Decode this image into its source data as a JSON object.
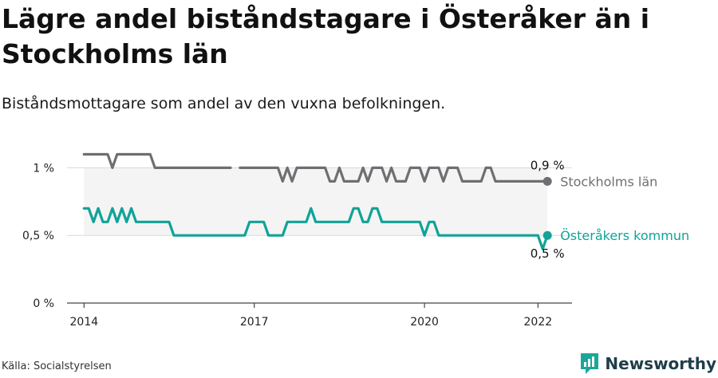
{
  "header": {
    "title": "Lägre andel biståndstagare i Österåker än i Stockholms län",
    "subtitle": "Biståndsmottagare som andel av den vuxna befolkningen."
  },
  "footer": {
    "source": "Källa: Socialstyrelsen",
    "brand": "Newsworthy"
  },
  "colors": {
    "stockholm": "#6e6e73",
    "osteraker": "#10a398",
    "band": "#f4f4f4",
    "grid": "#d9d9d9",
    "brand": "#1f3d4a",
    "brand_icon": "#1aa69a"
  },
  "chart_data": {
    "type": "line",
    "title": "Lägre andel biståndstagare i Österåker än i Stockholms län",
    "subtitle": "Biståndsmottagare som andel av den vuxna befolkningen.",
    "y_tick_labels": [
      "0 %",
      "0,5 %",
      "1 %"
    ],
    "y_ticks": [
      0,
      0.5,
      1
    ],
    "ylim": [
      0,
      1.15
    ],
    "x_tick_labels": [
      "2014",
      "2017",
      "2020",
      "2022"
    ],
    "x_ticks": [
      2014,
      2017,
      2020,
      2022
    ],
    "xlim": [
      2013.7,
      2022.6
    ],
    "grid": true,
    "x": [
      2014.0,
      2014.083,
      2014.167,
      2014.25,
      2014.333,
      2014.417,
      2014.5,
      2014.583,
      2014.667,
      2014.75,
      2014.833,
      2014.917,
      2015.0,
      2015.083,
      2015.167,
      2015.25,
      2015.333,
      2015.417,
      2015.5,
      2015.583,
      2015.667,
      2015.75,
      2015.833,
      2015.917,
      2016.0,
      2016.083,
      2016.167,
      2016.25,
      2016.333,
      2016.417,
      2016.5,
      2016.583,
      2016.667,
      2016.75,
      2016.833,
      2016.917,
      2017.0,
      2017.083,
      2017.167,
      2017.25,
      2017.333,
      2017.417,
      2017.5,
      2017.583,
      2017.667,
      2017.75,
      2017.833,
      2017.917,
      2018.0,
      2018.083,
      2018.167,
      2018.25,
      2018.333,
      2018.417,
      2018.5,
      2018.583,
      2018.667,
      2018.75,
      2018.833,
      2018.917,
      2019.0,
      2019.083,
      2019.167,
      2019.25,
      2019.333,
      2019.417,
      2019.5,
      2019.583,
      2019.667,
      2019.75,
      2019.833,
      2019.917,
      2020.0,
      2020.083,
      2020.167,
      2020.25,
      2020.333,
      2020.417,
      2020.5,
      2020.583,
      2020.667,
      2020.75,
      2020.833,
      2020.917,
      2021.0,
      2021.083,
      2021.167,
      2021.25,
      2021.333,
      2021.417,
      2021.5,
      2021.583,
      2021.667,
      2021.75,
      2021.833,
      2021.917,
      2022.0,
      2022.083,
      2022.167
    ],
    "series": [
      {
        "name": "Stockholms län",
        "end_label": "0,9 %",
        "values": [
          1.1,
          1.1,
          1.1,
          1.1,
          1.1,
          1.1,
          1.0,
          1.1,
          1.1,
          1.1,
          1.1,
          1.1,
          1.1,
          1.1,
          1.1,
          1.0,
          1.0,
          1.0,
          1.0,
          1.0,
          1.0,
          1.0,
          1.0,
          1.0,
          1.0,
          1.0,
          1.0,
          1.0,
          1.0,
          1.0,
          1.0,
          1.0,
          null,
          1.0,
          1.0,
          1.0,
          1.0,
          1.0,
          1.0,
          1.0,
          1.0,
          1.0,
          0.9,
          1.0,
          0.9,
          1.0,
          1.0,
          1.0,
          1.0,
          1.0,
          1.0,
          1.0,
          0.9,
          0.9,
          1.0,
          0.9,
          0.9,
          0.9,
          0.9,
          1.0,
          0.9,
          1.0,
          1.0,
          1.0,
          0.9,
          1.0,
          0.9,
          0.9,
          0.9,
          1.0,
          1.0,
          1.0,
          0.9,
          1.0,
          1.0,
          1.0,
          0.9,
          1.0,
          1.0,
          1.0,
          0.9,
          0.9,
          0.9,
          0.9,
          0.9,
          1.0,
          1.0,
          0.9,
          0.9,
          0.9,
          0.9,
          0.9,
          0.9,
          0.9,
          0.9,
          0.9,
          0.9,
          0.9,
          0.9
        ]
      },
      {
        "name": "Österåkers kommun",
        "end_label": "0,5 %",
        "values": [
          0.7,
          0.7,
          0.6,
          0.7,
          0.6,
          0.6,
          0.7,
          0.6,
          0.7,
          0.6,
          0.7,
          0.6,
          0.6,
          0.6,
          0.6,
          0.6,
          0.6,
          0.6,
          0.6,
          0.5,
          0.5,
          0.5,
          0.5,
          0.5,
          0.5,
          0.5,
          0.5,
          0.5,
          0.5,
          0.5,
          0.5,
          0.5,
          0.5,
          0.5,
          0.5,
          0.6,
          0.6,
          0.6,
          0.6,
          0.5,
          0.5,
          0.5,
          0.5,
          0.6,
          0.6,
          0.6,
          0.6,
          0.6,
          0.7,
          0.6,
          0.6,
          0.6,
          0.6,
          0.6,
          0.6,
          0.6,
          0.6,
          0.7,
          0.7,
          0.6,
          0.6,
          0.7,
          0.7,
          0.6,
          0.6,
          0.6,
          0.6,
          0.6,
          0.6,
          0.6,
          0.6,
          0.6,
          0.5,
          0.6,
          0.6,
          0.5,
          0.5,
          0.5,
          0.5,
          0.5,
          0.5,
          0.5,
          0.5,
          0.5,
          0.5,
          0.5,
          0.5,
          0.5,
          0.5,
          0.5,
          0.5,
          0.5,
          0.5,
          0.5,
          0.5,
          0.5,
          0.5,
          0.4,
          0.5
        ]
      }
    ]
  }
}
